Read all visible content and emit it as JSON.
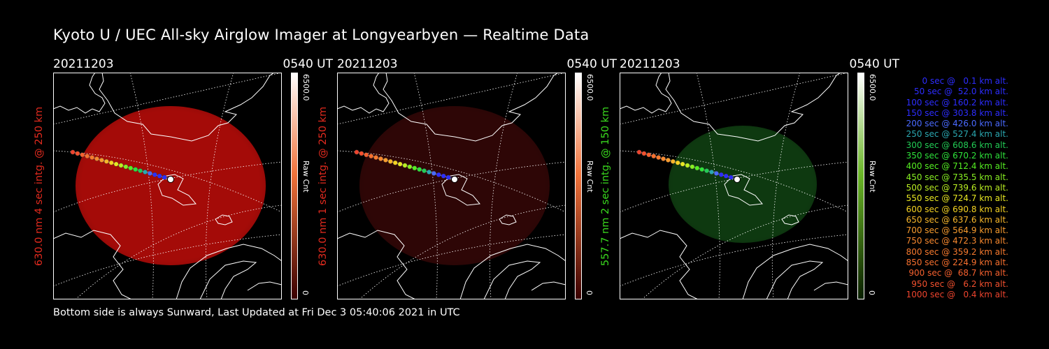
{
  "title": "Kyoto U / UEC All-sky Airglow Imager at Longyearbyen — Realtime Data",
  "footer": "Bottom side is always Sunward, Last Updated at Fri Dec  3 05:40:06 2021 in UTC",
  "panels": [
    {
      "date": "20211203",
      "time": "0540 UT",
      "side_label": "630.0 nm 4 sec intg. @ 250 km",
      "label_color": "#e22a1e",
      "image_color": "#a40b08",
      "image_intensity": 0.55,
      "cbar_max": "6500.0",
      "cbar_min": "0",
      "cbar_unit": "Raw Cnt"
    },
    {
      "date": "20211203",
      "time": "0540 UT",
      "side_label": "630.0 nm 1 sec intg. @ 250 km",
      "label_color": "#e22a1e",
      "image_color": "#2e0606",
      "image_intensity": 0.2,
      "cbar_max": "6500.0",
      "cbar_min": "0",
      "cbar_unit": "Raw Cnt"
    },
    {
      "date": "20211203",
      "time": "0540 UT",
      "side_label": "557.7 nm 2 sec intg. @ 150 km",
      "label_color": "#3adb1e",
      "image_color": "#0e3910",
      "image_intensity": 0.3,
      "cbar_max": "6500.0",
      "cbar_min": "0",
      "cbar_unit": "Raw Cnt"
    }
  ],
  "legend": [
    {
      "text": "  0 sec @   0.1 km alt.",
      "color": "#2d2dff"
    },
    {
      "text": " 50 sec @  52.0 km alt.",
      "color": "#2d2dff"
    },
    {
      "text": "100 sec @ 160.2 km alt.",
      "color": "#2d2dff"
    },
    {
      "text": "150 sec @ 303.8 km alt.",
      "color": "#2d2dff"
    },
    {
      "text": "200 sec @ 426.0 km alt.",
      "color": "#4a6aff"
    },
    {
      "text": "250 sec @ 527.4 km alt.",
      "color": "#2aa7b0"
    },
    {
      "text": "300 sec @ 608.6 km alt.",
      "color": "#22cc55"
    },
    {
      "text": "350 sec @ 670.2 km alt.",
      "color": "#2ee23a"
    },
    {
      "text": "400 sec @ 712.4 km alt.",
      "color": "#55ee22"
    },
    {
      "text": "450 sec @ 735.5 km alt.",
      "color": "#88f022"
    },
    {
      "text": "500 sec @ 739.6 km alt.",
      "color": "#bbf022"
    },
    {
      "text": "550 sec @ 724.7 km alt.",
      "color": "#e8e822"
    },
    {
      "text": "600 sec @ 690.8 km alt.",
      "color": "#f5d322"
    },
    {
      "text": "650 sec @ 637.6 km alt.",
      "color": "#f7b62a"
    },
    {
      "text": "700 sec @ 564.9 km alt.",
      "color": "#f79b2e"
    },
    {
      "text": "750 sec @ 472.3 km alt.",
      "color": "#f7882e"
    },
    {
      "text": "800 sec @ 359.2 km alt.",
      "color": "#f77a2e"
    },
    {
      "text": "850 sec @ 224.9 km alt.",
      "color": "#f7702e"
    },
    {
      "text": "900 sec @  68.7 km alt.",
      "color": "#f5602e"
    },
    {
      "text": "950 sec @   6.2 km alt.",
      "color": "#f2502e"
    },
    {
      "text": "1000 sec @   0.4 km alt.",
      "color": "#ee442e"
    }
  ]
}
